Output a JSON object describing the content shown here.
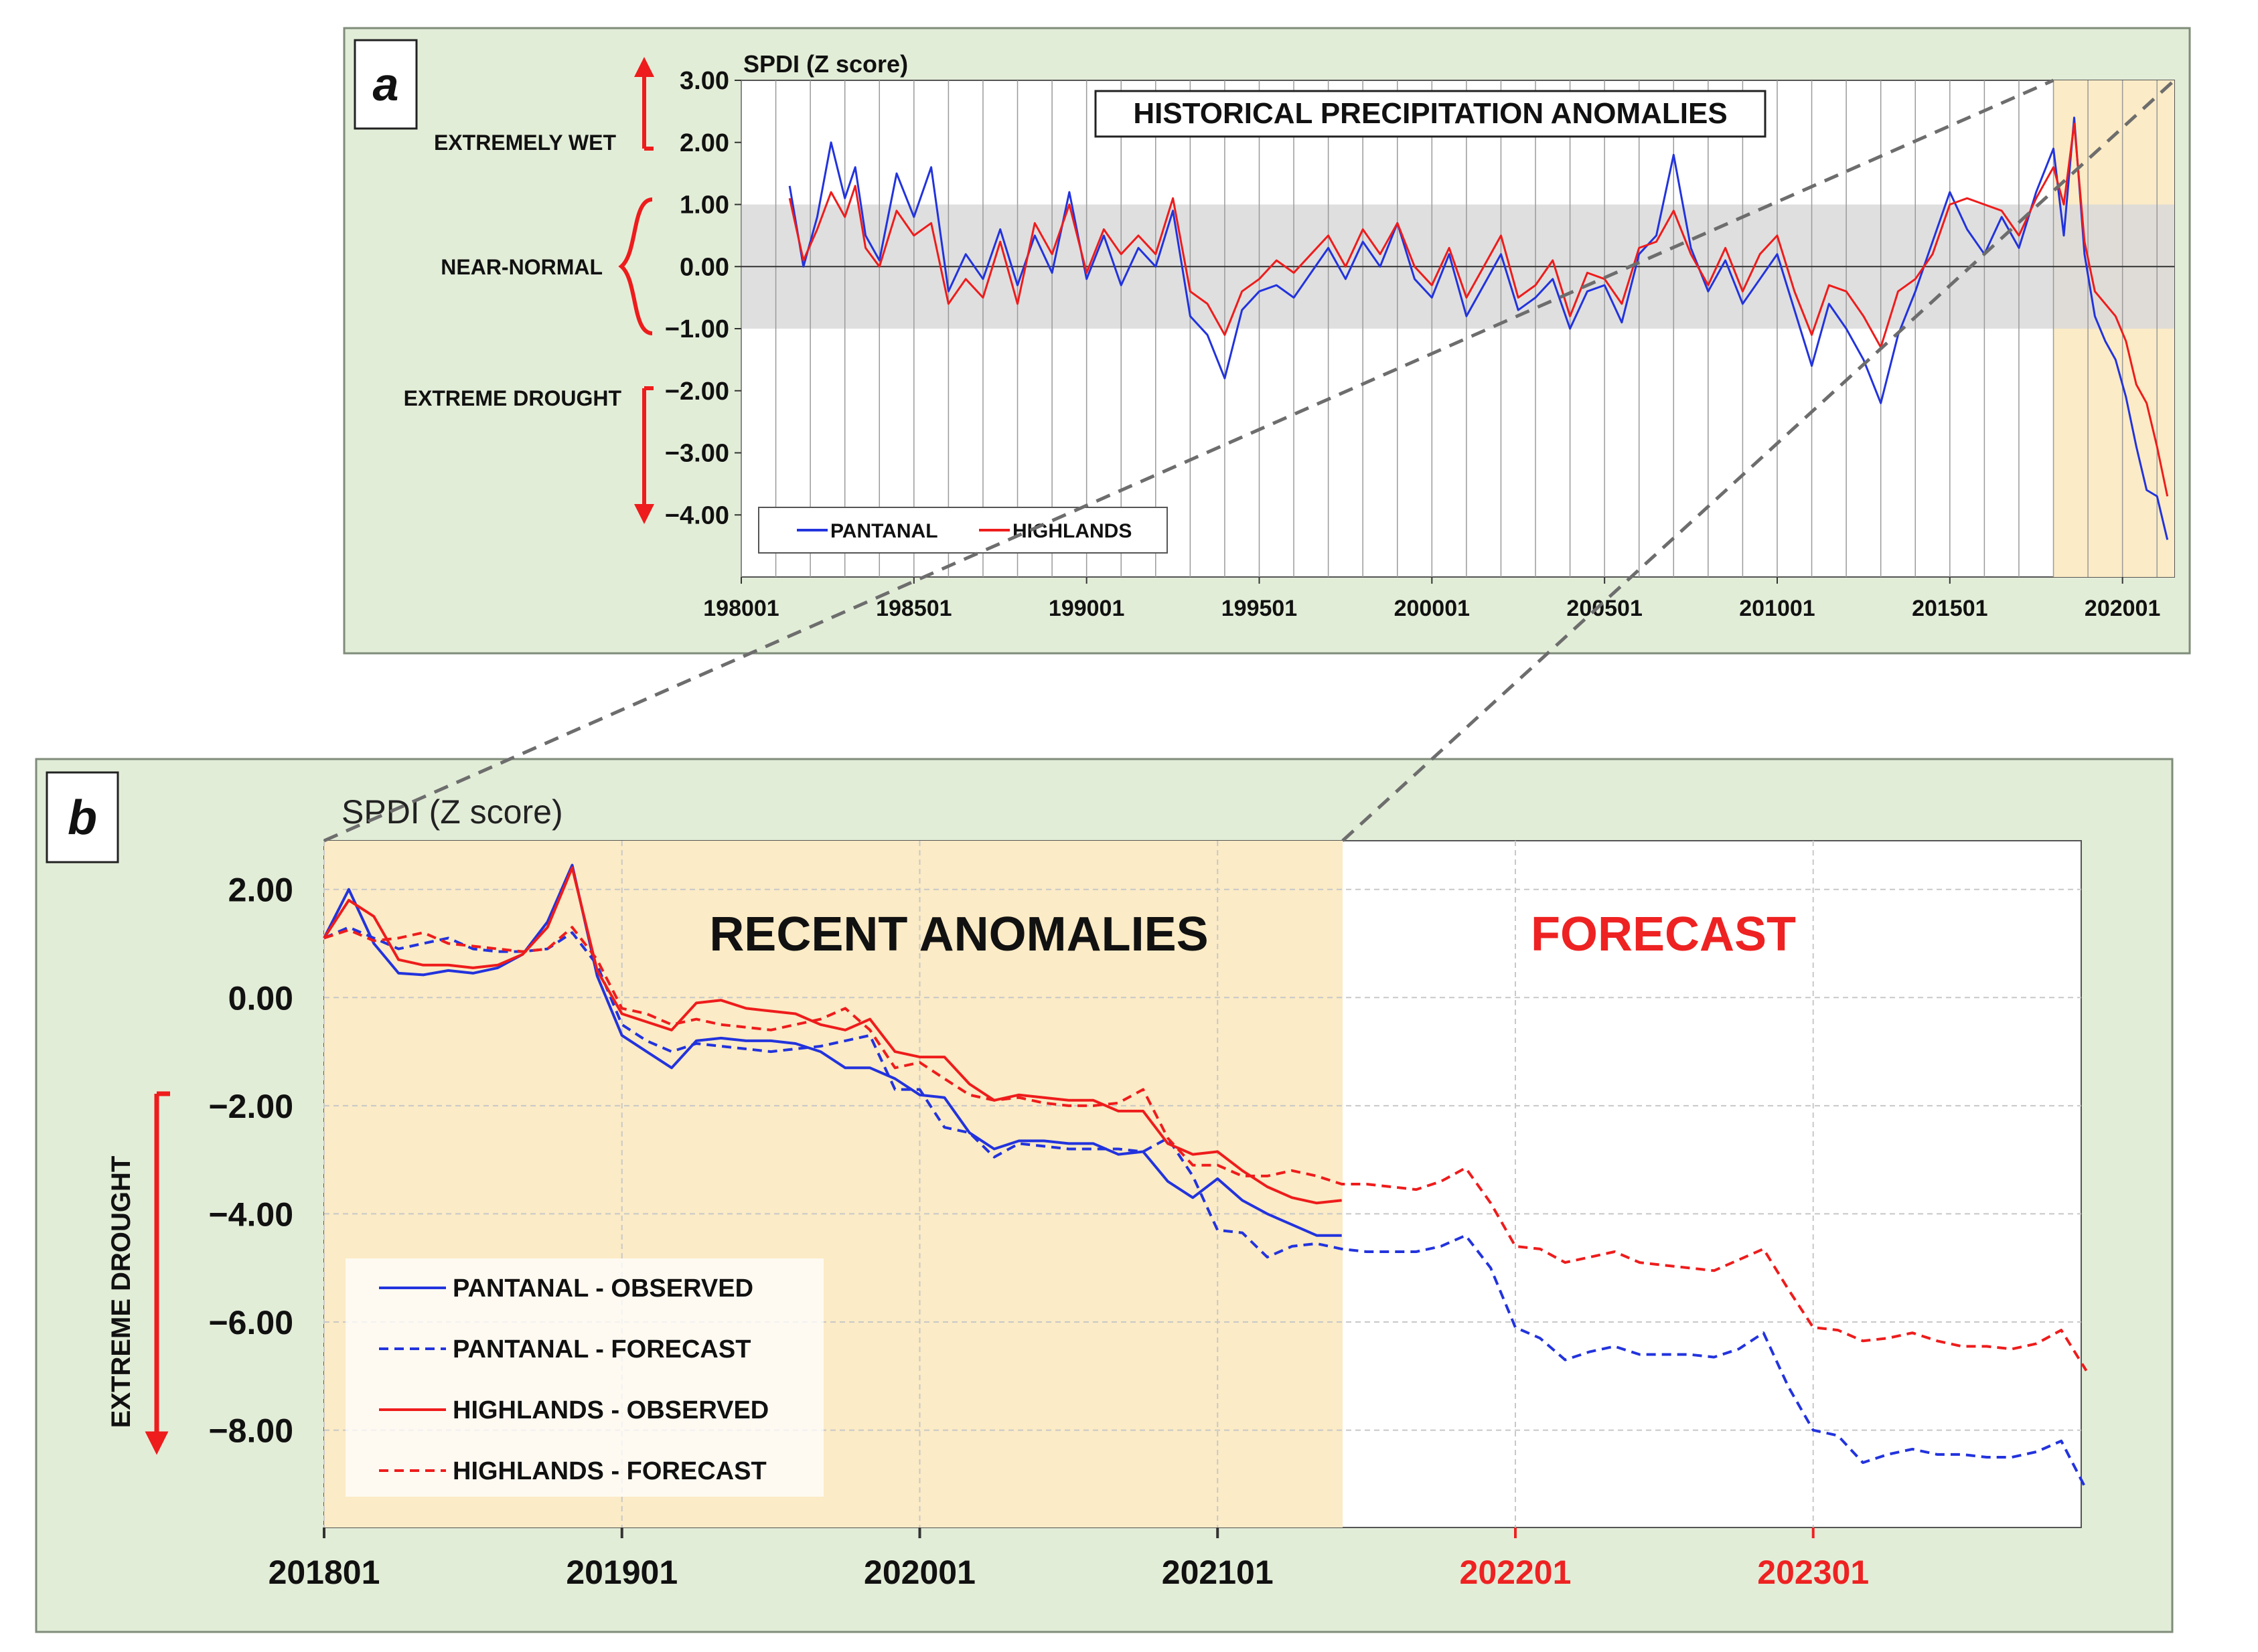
{
  "colors": {
    "panel_bg": "#e2edd8",
    "panel_border": "#7f8c7a",
    "pantanal": "#2233dd",
    "highlands": "#ee1c1c",
    "highlight": "#fbebc6",
    "normal_band": "#d9d9d9",
    "forecast_text": "#ee2222",
    "connector": "#6d6d6d"
  },
  "panel_a": {
    "label": "a",
    "chart_data": {
      "type": "line",
      "title": "HISTORICAL PRECIPITATION ANOMALIES",
      "ylabel": "SPDI (Z score)",
      "ylim": [
        -5.0,
        3.0
      ],
      "xlim": [
        1980.0,
        2021.5
      ],
      "y_ticks": [
        3.0,
        2.0,
        1.0,
        0.0,
        -1.0,
        -2.0,
        -3.0,
        -4.0
      ],
      "y_tick_labels": [
        "3.00",
        "2.00",
        "1.00",
        "0.00",
        "−1.00",
        "−2.00",
        "−3.00",
        "−4.00"
      ],
      "x_ticks": [
        1980,
        1985,
        1990,
        1995,
        2000,
        2005,
        2010,
        2015,
        2020
      ],
      "x_tick_labels": [
        "198001",
        "198501",
        "199001",
        "199501",
        "200001",
        "200501",
        "201001",
        "201501",
        "202001"
      ],
      "normal_band": [
        -1.0,
        1.0
      ],
      "highlight_range": [
        2018.0,
        2021.5
      ],
      "side_labels": {
        "extremely_wet": "EXTREMELY WET",
        "near_normal": "NEAR-NORMAL",
        "extreme_drought": "EXTREME DROUGHT"
      },
      "legend": [
        "PANTANAL",
        "HIGHLANDS"
      ],
      "series": [
        {
          "name": "PANTANAL",
          "x": [
            1981.4,
            1981.8,
            1982.2,
            1982.6,
            1983.0,
            1983.3,
            1983.6,
            1984.0,
            1984.5,
            1985.0,
            1985.5,
            1986.0,
            1986.5,
            1987.0,
            1987.5,
            1988.0,
            1988.5,
            1989.0,
            1989.5,
            1990.0,
            1990.5,
            1991.0,
            1991.5,
            1992.0,
            1992.5,
            1993.0,
            1993.5,
            1994.0,
            1994.5,
            1995.0,
            1995.5,
            1996.0,
            1996.5,
            1997.0,
            1997.5,
            1998.0,
            1998.5,
            1999.0,
            1999.5,
            2000.0,
            2000.5,
            2001.0,
            2001.5,
            2002.0,
            2002.5,
            2003.0,
            2003.5,
            2004.0,
            2004.5,
            2005.0,
            2005.5,
            2006.0,
            2006.5,
            2007.0,
            2007.5,
            2008.0,
            2008.5,
            2009.0,
            2009.5,
            2010.0,
            2010.5,
            2011.0,
            2011.5,
            2012.0,
            2012.5,
            2013.0,
            2013.5,
            2014.0,
            2014.5,
            2015.0,
            2015.5,
            2016.0,
            2016.5,
            2017.0,
            2017.5,
            2018.0,
            2018.3,
            2018.6,
            2018.9,
            2019.2,
            2019.5,
            2019.8,
            2020.1,
            2020.4,
            2020.7,
            2021.0,
            2021.3
          ],
          "values": [
            1.3,
            0.0,
            0.8,
            2.0,
            1.1,
            1.6,
            0.5,
            0.1,
            1.5,
            0.8,
            1.6,
            -0.4,
            0.2,
            -0.2,
            0.6,
            -0.3,
            0.5,
            -0.1,
            1.2,
            -0.2,
            0.5,
            -0.3,
            0.3,
            0.0,
            0.9,
            -0.8,
            -1.1,
            -1.8,
            -0.7,
            -0.4,
            -0.3,
            -0.5,
            -0.1,
            0.3,
            -0.2,
            0.4,
            0.0,
            0.7,
            -0.2,
            -0.5,
            0.2,
            -0.8,
            -0.3,
            0.2,
            -0.7,
            -0.5,
            -0.2,
            -1.0,
            -0.4,
            -0.3,
            -0.9,
            0.2,
            0.5,
            1.8,
            0.3,
            -0.4,
            0.1,
            -0.6,
            -0.2,
            0.2,
            -0.7,
            -1.6,
            -0.6,
            -1.0,
            -1.5,
            -2.2,
            -1.1,
            -0.4,
            0.4,
            1.2,
            0.6,
            0.2,
            0.8,
            0.3,
            1.2,
            1.9,
            0.5,
            2.4,
            0.2,
            -0.8,
            -1.2,
            -1.5,
            -2.1,
            -2.9,
            -3.6,
            -3.7,
            -4.4
          ]
        },
        {
          "name": "HIGHLANDS",
          "x": [
            1981.4,
            1981.8,
            1982.2,
            1982.6,
            1983.0,
            1983.3,
            1983.6,
            1984.0,
            1984.5,
            1985.0,
            1985.5,
            1986.0,
            1986.5,
            1987.0,
            1987.5,
            1988.0,
            1988.5,
            1989.0,
            1989.5,
            1990.0,
            1990.5,
            1991.0,
            1991.5,
            1992.0,
            1992.5,
            1993.0,
            1993.5,
            1994.0,
            1994.5,
            1995.0,
            1995.5,
            1996.0,
            1996.5,
            1997.0,
            1997.5,
            1998.0,
            1998.5,
            1999.0,
            1999.5,
            2000.0,
            2000.5,
            2001.0,
            2001.5,
            2002.0,
            2002.5,
            2003.0,
            2003.5,
            2004.0,
            2004.5,
            2005.0,
            2005.5,
            2006.0,
            2006.5,
            2007.0,
            2007.5,
            2008.0,
            2008.5,
            2009.0,
            2009.5,
            2010.0,
            2010.5,
            2011.0,
            2011.5,
            2012.0,
            2012.5,
            2013.0,
            2013.5,
            2014.0,
            2014.5,
            2015.0,
            2015.5,
            2016.0,
            2016.5,
            2017.0,
            2017.5,
            2018.0,
            2018.3,
            2018.6,
            2018.9,
            2019.2,
            2019.5,
            2019.8,
            2020.1,
            2020.4,
            2020.7,
            2021.0,
            2021.3
          ],
          "values": [
            1.1,
            0.1,
            0.6,
            1.2,
            0.8,
            1.3,
            0.3,
            0.0,
            0.9,
            0.5,
            0.7,
            -0.6,
            -0.2,
            -0.5,
            0.4,
            -0.6,
            0.7,
            0.2,
            1.0,
            -0.1,
            0.6,
            0.2,
            0.5,
            0.2,
            1.1,
            -0.4,
            -0.6,
            -1.1,
            -0.4,
            -0.2,
            0.1,
            -0.1,
            0.2,
            0.5,
            0.0,
            0.6,
            0.2,
            0.7,
            0.0,
            -0.3,
            0.3,
            -0.5,
            0.0,
            0.5,
            -0.5,
            -0.3,
            0.1,
            -0.8,
            -0.1,
            -0.2,
            -0.6,
            0.3,
            0.4,
            0.9,
            0.2,
            -0.3,
            0.3,
            -0.4,
            0.2,
            0.5,
            -0.4,
            -1.1,
            -0.3,
            -0.4,
            -0.8,
            -1.3,
            -0.4,
            -0.2,
            0.2,
            1.0,
            1.1,
            1.0,
            0.9,
            0.5,
            1.1,
            1.6,
            1.0,
            2.3,
            0.4,
            -0.4,
            -0.6,
            -0.8,
            -1.2,
            -1.9,
            -2.2,
            -2.9,
            -3.7
          ]
        }
      ]
    }
  },
  "panel_b": {
    "label": "b",
    "chart_data": {
      "type": "line",
      "ylabel": "SPDI (Z score)",
      "ylim": [
        -9.8,
        2.9
      ],
      "xlim": [
        2018.0,
        2023.9
      ],
      "y_ticks": [
        2.0,
        0.0,
        -2.0,
        -4.0,
        -6.0,
        -8.0
      ],
      "y_tick_labels": [
        "2.00",
        "0.00",
        "−2.00",
        "−4.00",
        "−6.00",
        "−8.00"
      ],
      "x_ticks": [
        2018,
        2019,
        2020,
        2021,
        2022,
        2023
      ],
      "x_tick_labels": [
        "201801",
        "201901",
        "202001",
        "202101",
        "202201",
        "202301"
      ],
      "recent_label": "RECENT ANOMALIES",
      "forecast_label": "FORECAST",
      "recent_range": [
        2018.0,
        2021.42
      ],
      "side_label": "EXTREME DROUGHT",
      "legend": [
        "PANTANAL - OBSERVED",
        "PANTANAL - FORECAST",
        "HIGHLANDS - OBSERVED",
        "HIGHLANDS - FORECAST"
      ],
      "series": [
        {
          "name": "PANTANAL - OBSERVED",
          "style": "solid",
          "x": [
            2018.0,
            2018.083,
            2018.167,
            2018.25,
            2018.333,
            2018.417,
            2018.5,
            2018.583,
            2018.667,
            2018.75,
            2018.833,
            2018.917,
            2019.0,
            2019.083,
            2019.167,
            2019.25,
            2019.333,
            2019.417,
            2019.5,
            2019.583,
            2019.667,
            2019.75,
            2019.833,
            2019.917,
            2020.0,
            2020.083,
            2020.167,
            2020.25,
            2020.333,
            2020.417,
            2020.5,
            2020.583,
            2020.667,
            2020.75,
            2020.833,
            2020.917,
            2021.0,
            2021.083,
            2021.167,
            2021.25,
            2021.333,
            2021.417
          ],
          "values": [
            1.1,
            2.0,
            1.0,
            0.45,
            0.42,
            0.5,
            0.45,
            0.55,
            0.8,
            1.4,
            2.45,
            0.4,
            -0.7,
            -1.0,
            -1.3,
            -0.8,
            -0.75,
            -0.8,
            -0.8,
            -0.85,
            -1.0,
            -1.3,
            -1.3,
            -1.5,
            -1.8,
            -1.85,
            -2.5,
            -2.8,
            -2.65,
            -2.65,
            -2.7,
            -2.7,
            -2.9,
            -2.85,
            -3.4,
            -3.7,
            -3.35,
            -3.75,
            -4.0,
            -4.2,
            -4.4,
            -4.4
          ]
        },
        {
          "name": "PANTANAL - FORECAST",
          "style": "dashed",
          "x": [
            2018.0,
            2018.083,
            2018.167,
            2018.25,
            2018.333,
            2018.417,
            2018.5,
            2018.583,
            2018.667,
            2018.75,
            2018.833,
            2018.917,
            2019.0,
            2019.083,
            2019.167,
            2019.25,
            2019.333,
            2019.417,
            2019.5,
            2019.583,
            2019.667,
            2019.75,
            2019.833,
            2019.917,
            2020.0,
            2020.083,
            2020.167,
            2020.25,
            2020.333,
            2020.417,
            2020.5,
            2020.583,
            2020.667,
            2020.75,
            2020.833,
            2020.917,
            2021.0,
            2021.083,
            2021.167,
            2021.25,
            2021.333,
            2021.417,
            2021.5,
            2021.583,
            2021.667,
            2021.75,
            2021.833,
            2021.917,
            2022.0,
            2022.083,
            2022.167,
            2022.25,
            2022.333,
            2022.417,
            2022.5,
            2022.583,
            2022.667,
            2022.75,
            2022.833,
            2022.917,
            2023.0,
            2023.083,
            2023.167,
            2023.25,
            2023.333,
            2023.417,
            2023.5,
            2023.583,
            2023.667,
            2023.75,
            2023.833,
            2023.917
          ],
          "values": [
            1.1,
            1.3,
            1.1,
            0.9,
            1.0,
            1.1,
            0.9,
            0.85,
            0.85,
            0.9,
            1.2,
            0.6,
            -0.5,
            -0.8,
            -1.0,
            -0.85,
            -0.9,
            -0.95,
            -1.0,
            -0.95,
            -0.9,
            -0.8,
            -0.7,
            -1.7,
            -1.7,
            -2.4,
            -2.5,
            -2.95,
            -2.7,
            -2.75,
            -2.8,
            -2.8,
            -2.8,
            -2.85,
            -2.6,
            -3.3,
            -4.3,
            -4.35,
            -4.8,
            -4.6,
            -4.55,
            -4.65,
            -4.7,
            -4.7,
            -4.7,
            -4.6,
            -4.4,
            -5.0,
            -6.1,
            -6.3,
            -6.7,
            -6.55,
            -6.45,
            -6.6,
            -6.6,
            -6.6,
            -6.65,
            -6.5,
            -6.2,
            -7.2,
            -8.0,
            -8.1,
            -8.6,
            -8.45,
            -8.35,
            -8.45,
            -8.45,
            -8.5,
            -8.5,
            -8.4,
            -8.2,
            -9.1
          ]
        },
        {
          "name": "HIGHLANDS - OBSERVED",
          "style": "solid",
          "x": [
            2018.0,
            2018.083,
            2018.167,
            2018.25,
            2018.333,
            2018.417,
            2018.5,
            2018.583,
            2018.667,
            2018.75,
            2018.833,
            2018.917,
            2019.0,
            2019.083,
            2019.167,
            2019.25,
            2019.333,
            2019.417,
            2019.5,
            2019.583,
            2019.667,
            2019.75,
            2019.833,
            2019.917,
            2020.0,
            2020.083,
            2020.167,
            2020.25,
            2020.333,
            2020.417,
            2020.5,
            2020.583,
            2020.667,
            2020.75,
            2020.833,
            2020.917,
            2021.0,
            2021.083,
            2021.167,
            2021.25,
            2021.333,
            2021.417
          ],
          "values": [
            1.1,
            1.8,
            1.5,
            0.7,
            0.6,
            0.6,
            0.55,
            0.6,
            0.8,
            1.3,
            2.4,
            0.5,
            -0.3,
            -0.45,
            -0.6,
            -0.1,
            -0.05,
            -0.2,
            -0.25,
            -0.3,
            -0.5,
            -0.6,
            -0.4,
            -1.0,
            -1.1,
            -1.1,
            -1.6,
            -1.9,
            -1.8,
            -1.85,
            -1.9,
            -1.9,
            -2.1,
            -2.1,
            -2.7,
            -2.9,
            -2.85,
            -3.2,
            -3.5,
            -3.7,
            -3.8,
            -3.75
          ]
        },
        {
          "name": "HIGHLANDS - FORECAST",
          "style": "dashed",
          "x": [
            2018.0,
            2018.083,
            2018.167,
            2018.25,
            2018.333,
            2018.417,
            2018.5,
            2018.583,
            2018.667,
            2018.75,
            2018.833,
            2018.917,
            2019.0,
            2019.083,
            2019.167,
            2019.25,
            2019.333,
            2019.417,
            2019.5,
            2019.583,
            2019.667,
            2019.75,
            2019.833,
            2019.917,
            2020.0,
            2020.083,
            2020.167,
            2020.25,
            2020.333,
            2020.417,
            2020.5,
            2020.583,
            2020.667,
            2020.75,
            2020.833,
            2020.917,
            2021.0,
            2021.083,
            2021.167,
            2021.25,
            2021.333,
            2021.417,
            2021.5,
            2021.583,
            2021.667,
            2021.75,
            2021.833,
            2021.917,
            2022.0,
            2022.083,
            2022.167,
            2022.25,
            2022.333,
            2022.417,
            2022.5,
            2022.583,
            2022.667,
            2022.75,
            2022.833,
            2022.917,
            2023.0,
            2023.083,
            2023.167,
            2023.25,
            2023.333,
            2023.417,
            2023.5,
            2023.583,
            2023.667,
            2023.75,
            2023.833,
            2023.917
          ],
          "values": [
            1.1,
            1.25,
            1.05,
            1.1,
            1.2,
            1.0,
            0.95,
            0.9,
            0.85,
            0.9,
            1.3,
            0.7,
            -0.2,
            -0.3,
            -0.5,
            -0.4,
            -0.5,
            -0.55,
            -0.6,
            -0.5,
            -0.4,
            -0.2,
            -0.6,
            -1.3,
            -1.2,
            -1.5,
            -1.8,
            -1.9,
            -1.85,
            -1.95,
            -2.0,
            -2.0,
            -1.95,
            -1.7,
            -2.6,
            -3.1,
            -3.1,
            -3.3,
            -3.3,
            -3.2,
            -3.3,
            -3.45,
            -3.45,
            -3.5,
            -3.55,
            -3.4,
            -3.15,
            -3.8,
            -4.6,
            -4.65,
            -4.9,
            -4.8,
            -4.7,
            -4.9,
            -4.95,
            -5.0,
            -5.05,
            -4.85,
            -4.65,
            -5.4,
            -6.1,
            -6.15,
            -6.35,
            -6.3,
            -6.2,
            -6.35,
            -6.45,
            -6.45,
            -6.5,
            -6.4,
            -6.15,
            -6.9
          ]
        }
      ]
    }
  }
}
